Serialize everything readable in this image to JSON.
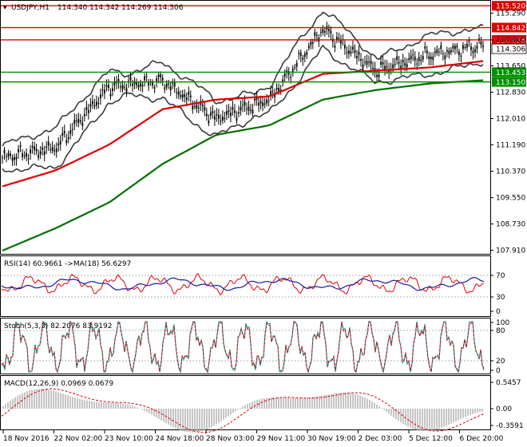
{
  "symbol_header": {
    "menu_glyph": "▾",
    "symbol": "USDJPY,H1",
    "ohlc": "114.340 114.342 114.269 114.306"
  },
  "colors": {
    "bull_candle": "#000000",
    "ma_red": "#e00000",
    "ma_green": "#007000",
    "bollinger": "#3a3a3a",
    "resistance": "#e00000",
    "support": "#009000",
    "indicator_main": "#1a1aa0",
    "indicator_signal": "#e00000",
    "stoch_main": "#20a0a0",
    "macd_hist": "#b0b0b0"
  },
  "price_axis": {
    "ticks": [
      "115.290",
      "114.460",
      "113.650",
      "112.830",
      "112.010",
      "111.190",
      "110.370",
      "109.550",
      "108.730",
      "107.910"
    ],
    "current_price": "114.306",
    "levels": [
      {
        "label": "115.520",
        "kind": "resistance"
      },
      {
        "label": "114.842",
        "kind": "resistance"
      },
      {
        "label": "114.458",
        "kind": "resistance"
      },
      {
        "label": "113.453",
        "kind": "support"
      },
      {
        "label": "113.150",
        "kind": "support"
      }
    ]
  },
  "rsi": {
    "title": "RSI(14) 60.9661  ->MA(18) 56.6297",
    "ticks": [
      "70",
      "30",
      "0"
    ]
  },
  "stoch": {
    "title": "Stoch(5,3,3) 82.2076 83.9192",
    "ticks": [
      "100",
      "80",
      "20",
      "0"
    ]
  },
  "macd": {
    "title": "MACD(12,26,9) 0.0969 0.0679",
    "ticks": [
      "0.5457",
      "0.00",
      "-0.3591"
    ]
  },
  "time_axis": {
    "labels": [
      "18 Nov 2016",
      "22 Nov 02:00",
      "23 Nov 10:00",
      "24 Nov 18:00",
      "28 Nov 03:00",
      "29 Nov 11:00",
      "30 Nov 19:00",
      "2 Dec 03:00",
      "5 Dec 12:00",
      "6 Dec 20:00"
    ]
  },
  "chart_data": {
    "type": "line",
    "title": "USDJPY,H1",
    "ylim": [
      107.8,
      115.6
    ],
    "x": [
      "18 Nov 2016",
      "22 Nov 02:00",
      "23 Nov 10:00",
      "24 Nov 18:00",
      "28 Nov 03:00",
      "29 Nov 11:00",
      "30 Nov 19:00",
      "2 Dec 03:00",
      "5 Dec 12:00",
      "6 Dec 20:00"
    ],
    "series": [
      {
        "values": [
          110.8,
          111.1,
          113.0,
          113.2,
          112.0,
          112.6,
          114.8,
          113.5,
          114.0,
          114.3
        ]
      },
      {
        "values": [
          109.9,
          110.4,
          111.2,
          112.3,
          112.6,
          112.7,
          113.4,
          113.5,
          113.6,
          113.8
        ]
      },
      {
        "values": [
          107.9,
          108.6,
          109.4,
          110.6,
          111.5,
          111.8,
          112.6,
          112.9,
          113.1,
          113.2
        ]
      }
    ]
  }
}
